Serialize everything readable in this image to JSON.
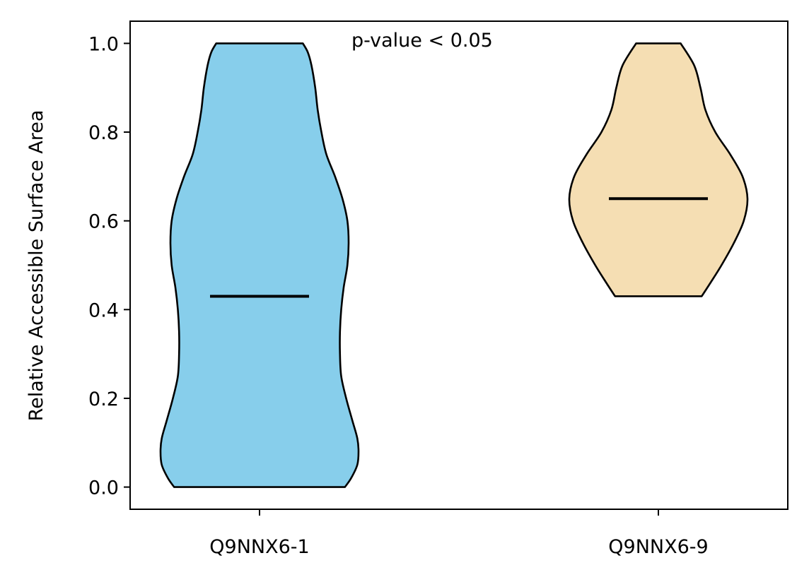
{
  "chart_data": {
    "type": "violin",
    "title": "",
    "xlabel": "",
    "ylabel": "Relative Accessible Surface Area",
    "ylim": [
      -0.05,
      1.05
    ],
    "yticks": [
      "0.0",
      "0.2",
      "0.4",
      "0.6",
      "0.8",
      "1.0"
    ],
    "annotation": "p-value < 0.05",
    "categories": [
      "Q9NNX6-1",
      "Q9NNX6-9"
    ],
    "series": [
      {
        "category": "Q9NNX6-1",
        "color": "#87CEEB",
        "min": 0.0,
        "max": 1.0,
        "median": 0.43,
        "density_profile": [
          [
            0.0,
            0.69
          ],
          [
            0.02,
            0.74
          ],
          [
            0.05,
            0.79
          ],
          [
            0.08,
            0.8
          ],
          [
            0.11,
            0.79
          ],
          [
            0.15,
            0.75
          ],
          [
            0.2,
            0.7
          ],
          [
            0.25,
            0.66
          ],
          [
            0.3,
            0.65
          ],
          [
            0.35,
            0.65
          ],
          [
            0.4,
            0.66
          ],
          [
            0.45,
            0.68
          ],
          [
            0.5,
            0.71
          ],
          [
            0.55,
            0.72
          ],
          [
            0.6,
            0.71
          ],
          [
            0.65,
            0.67
          ],
          [
            0.7,
            0.61
          ],
          [
            0.75,
            0.54
          ],
          [
            0.8,
            0.5
          ],
          [
            0.85,
            0.47
          ],
          [
            0.9,
            0.45
          ],
          [
            0.95,
            0.42
          ],
          [
            0.98,
            0.39
          ],
          [
            1.0,
            0.35
          ]
        ]
      },
      {
        "category": "Q9NNX6-9",
        "color": "#F5DEB3",
        "min": 0.43,
        "max": 1.0,
        "median": 0.65,
        "density_profile": [
          [
            0.43,
            0.35
          ],
          [
            0.46,
            0.42
          ],
          [
            0.5,
            0.51
          ],
          [
            0.55,
            0.61
          ],
          [
            0.6,
            0.69
          ],
          [
            0.65,
            0.72
          ],
          [
            0.7,
            0.68
          ],
          [
            0.75,
            0.58
          ],
          [
            0.8,
            0.46
          ],
          [
            0.85,
            0.38
          ],
          [
            0.9,
            0.34
          ],
          [
            0.95,
            0.29
          ],
          [
            1.0,
            0.18
          ]
        ]
      }
    ]
  }
}
